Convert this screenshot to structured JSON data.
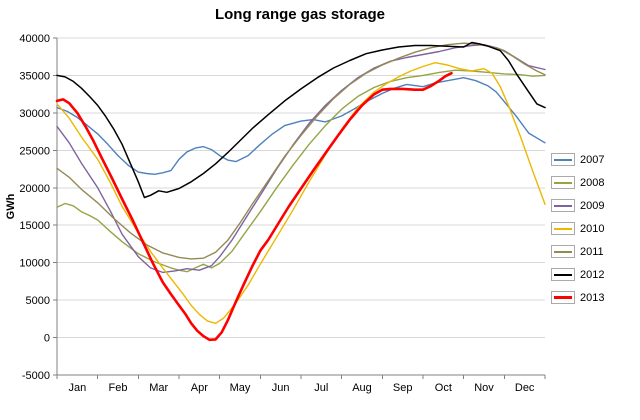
{
  "title": "Long range gas storage",
  "y_axis": {
    "label": "GWh",
    "min": -5000,
    "max": 40000,
    "step": 5000
  },
  "x_axis": {
    "months": [
      "Jan",
      "Feb",
      "Mar",
      "Apr",
      "May",
      "Jun",
      "Jul",
      "Aug",
      "Sep",
      "Oct",
      "Nov",
      "Dec"
    ]
  },
  "legend": {
    "items": [
      {
        "label": "2007",
        "color": "#4f81bd"
      },
      {
        "label": "2008",
        "color": "#94a545"
      },
      {
        "label": "2009",
        "color": "#7f63a1"
      },
      {
        "label": "2010",
        "color": "#edb700"
      },
      {
        "label": "2011",
        "color": "#948a54"
      },
      {
        "label": "2012",
        "color": "#000000"
      },
      {
        "label": "2013",
        "color": "#ff0000"
      }
    ]
  },
  "chart_data": {
    "type": "line",
    "title": "Long range gas storage",
    "xlabel": "",
    "ylabel": "GWh",
    "ylim": [
      -5000,
      40000
    ],
    "x_unit": "month fraction, 0 = start of Jan, 12 = end of Dec",
    "grid": "horizontal",
    "legend_position": "right",
    "series": [
      {
        "name": "2007",
        "color": "#4f81bd",
        "width": 1.4,
        "x": [
          0,
          0.25,
          0.5,
          0.75,
          1,
          1.25,
          1.5,
          1.75,
          2,
          2.2,
          2.4,
          2.6,
          2.8,
          3,
          3.2,
          3.4,
          3.6,
          3.8,
          4,
          4.2,
          4.4,
          4.7,
          5,
          5.3,
          5.6,
          6,
          6.3,
          6.6,
          7,
          7.3,
          7.6,
          8,
          8.3,
          8.6,
          9,
          9.3,
          9.6,
          10,
          10.3,
          10.6,
          10.8,
          11,
          11.3,
          11.6,
          12
        ],
        "y": [
          30700,
          30200,
          29400,
          28300,
          27200,
          25800,
          24300,
          23000,
          22100,
          21900,
          21800,
          22000,
          22300,
          23800,
          24800,
          25300,
          25500,
          25100,
          24300,
          23700,
          23500,
          24300,
          25800,
          27200,
          28300,
          28900,
          29100,
          28800,
          29600,
          30500,
          31500,
          32600,
          33300,
          33800,
          33500,
          34000,
          34300,
          34700,
          34300,
          33600,
          32800,
          31500,
          29500,
          27300,
          26000
        ]
      },
      {
        "name": "2008",
        "color": "#94a545",
        "width": 1.4,
        "x": [
          0,
          0.2,
          0.4,
          0.6,
          0.8,
          1,
          1.3,
          1.6,
          2,
          2.4,
          2.8,
          3,
          3.2,
          3.4,
          3.6,
          3.8,
          4,
          4.3,
          4.6,
          5,
          5.4,
          5.8,
          6.2,
          6.6,
          7,
          7.4,
          7.8,
          8.2,
          8.6,
          9,
          9.4,
          9.8,
          10.2,
          10.6,
          11,
          11.4,
          11.7,
          12
        ],
        "y": [
          17400,
          17900,
          17600,
          16800,
          16300,
          15700,
          14200,
          12800,
          11200,
          10100,
          9300,
          9000,
          8800,
          9300,
          9800,
          9300,
          9900,
          11500,
          13800,
          16800,
          20000,
          23000,
          25800,
          28300,
          30500,
          32200,
          33400,
          34200,
          34700,
          35000,
          35400,
          35700,
          35600,
          35400,
          35200,
          35100,
          34900,
          35000
        ]
      },
      {
        "name": "2009",
        "color": "#7f63a1",
        "width": 1.4,
        "x": [
          0,
          0.3,
          0.6,
          1,
          1.3,
          1.6,
          2,
          2.3,
          2.6,
          2.9,
          3.2,
          3.5,
          3.8,
          4,
          4.3,
          4.6,
          5,
          5.4,
          5.8,
          6.2,
          6.6,
          7,
          7.4,
          7.8,
          8.2,
          8.6,
          9,
          9.4,
          9.8,
          10.2,
          10.5,
          10.8,
          11,
          11.3,
          11.6,
          12
        ],
        "y": [
          28200,
          26000,
          23300,
          20000,
          17000,
          13800,
          10800,
          9300,
          8700,
          8900,
          9200,
          9000,
          9600,
          10800,
          13000,
          15600,
          19000,
          22500,
          25700,
          28600,
          31000,
          33000,
          34700,
          36000,
          36900,
          37400,
          37800,
          38200,
          38700,
          39000,
          39100,
          38700,
          38300,
          37300,
          36300,
          35800
        ]
      },
      {
        "name": "2010",
        "color": "#edb700",
        "width": 1.4,
        "x": [
          0,
          0.3,
          0.6,
          1,
          1.3,
          1.6,
          2,
          2.3,
          2.6,
          2.9,
          3.1,
          3.3,
          3.5,
          3.7,
          3.9,
          4.1,
          4.4,
          4.7,
          5,
          5.4,
          5.8,
          6.2,
          6.6,
          7,
          7.4,
          7.8,
          8.1,
          8.4,
          8.7,
          9,
          9.3,
          9.6,
          9.9,
          10.2,
          10.5,
          10.7,
          10.9,
          11.1,
          11.4,
          11.7,
          12
        ],
        "y": [
          31200,
          29300,
          26800,
          23800,
          20800,
          17500,
          14000,
          11500,
          9300,
          7200,
          5800,
          4300,
          3100,
          2200,
          1900,
          2600,
          4600,
          7000,
          9800,
          13400,
          17000,
          20800,
          24400,
          27800,
          30700,
          32800,
          33900,
          34800,
          35600,
          36200,
          36700,
          36400,
          35900,
          35600,
          35900,
          35300,
          33500,
          31000,
          26800,
          22200,
          17800
        ]
      },
      {
        "name": "2011",
        "color": "#948a54",
        "width": 1.4,
        "x": [
          0,
          0.3,
          0.6,
          1,
          1.4,
          1.8,
          2.2,
          2.6,
          3,
          3.3,
          3.6,
          3.9,
          4.2,
          4.5,
          4.8,
          5.2,
          5.6,
          6,
          6.4,
          6.8,
          7.2,
          7.6,
          8,
          8.4,
          8.8,
          9.2,
          9.6,
          10,
          10.3,
          10.6,
          10.9,
          11.2,
          11.5,
          11.8,
          12
        ],
        "y": [
          22600,
          21400,
          19800,
          18000,
          15900,
          14000,
          12400,
          11300,
          10700,
          10500,
          10600,
          11400,
          13000,
          15300,
          17800,
          21000,
          24200,
          27000,
          29600,
          31900,
          33800,
          35300,
          36400,
          37300,
          38100,
          38700,
          39100,
          39300,
          39200,
          38900,
          38500,
          37600,
          36500,
          35600,
          35100
        ]
      },
      {
        "name": "2012",
        "color": "#000000",
        "width": 1.5,
        "x": [
          0,
          0.2,
          0.4,
          0.6,
          0.8,
          1,
          1.2,
          1.4,
          1.6,
          1.8,
          2,
          2.15,
          2.3,
          2.5,
          2.7,
          3,
          3.3,
          3.6,
          3.9,
          4.2,
          4.5,
          4.8,
          5.2,
          5.6,
          6,
          6.4,
          6.8,
          7.2,
          7.6,
          8,
          8.4,
          8.8,
          9.2,
          9.6,
          10,
          10.2,
          10.4,
          10.6,
          10.9,
          11.1,
          11.3,
          11.6,
          11.8,
          12
        ],
        "y": [
          35000,
          34800,
          34200,
          33300,
          32200,
          31000,
          29500,
          27800,
          25800,
          23300,
          20800,
          18700,
          19000,
          19600,
          19400,
          19900,
          20800,
          21900,
          23200,
          24700,
          26300,
          27900,
          29800,
          31600,
          33200,
          34700,
          36000,
          37000,
          37900,
          38400,
          38800,
          39000,
          39000,
          38900,
          38800,
          39400,
          39200,
          38900,
          38300,
          37000,
          35200,
          32800,
          31200,
          30700
        ]
      },
      {
        "name": "2013",
        "color": "#ff0000",
        "width": 2.6,
        "x": [
          0,
          0.15,
          0.3,
          0.5,
          0.7,
          0.9,
          1.1,
          1.35,
          1.6,
          1.85,
          2.1,
          2.35,
          2.6,
          2.8,
          3,
          3.15,
          3.3,
          3.45,
          3.6,
          3.75,
          3.9,
          4.05,
          4.2,
          4.4,
          4.6,
          4.8,
          5,
          5.2,
          5.45,
          5.7,
          6,
          6.3,
          6.6,
          6.9,
          7.2,
          7.5,
          7.8,
          8,
          8.2,
          8.5,
          8.8,
          9,
          9.2,
          9.4,
          9.55,
          9.7
        ],
        "y": [
          31600,
          31800,
          31300,
          30000,
          28200,
          26200,
          24000,
          21300,
          18500,
          15800,
          12900,
          10000,
          7400,
          5800,
          4300,
          3200,
          1900,
          900,
          200,
          -300,
          -250,
          700,
          2300,
          4800,
          7200,
          9500,
          11600,
          13100,
          15300,
          17500,
          19900,
          22300,
          24600,
          26900,
          29100,
          31000,
          32500,
          33100,
          33200,
          33200,
          33100,
          33100,
          33600,
          34300,
          34900,
          35300
        ]
      }
    ]
  }
}
